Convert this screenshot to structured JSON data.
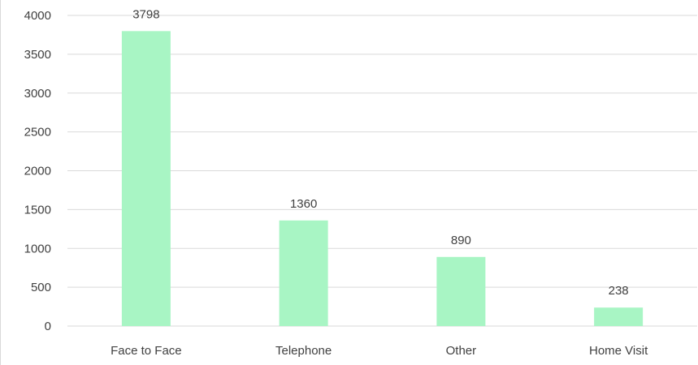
{
  "chart_data": {
    "type": "bar",
    "categories": [
      "Face to Face",
      "Telephone",
      "Other",
      "Home Visit"
    ],
    "values": [
      3798,
      1360,
      890,
      238
    ],
    "data_labels": [
      "3798",
      "1360",
      "890",
      "238"
    ],
    "y_ticks": [
      "0",
      "500",
      "1000",
      "1500",
      "2000",
      "2500",
      "3000",
      "3500",
      "4000"
    ],
    "ylim": [
      0,
      4000
    ],
    "grid": true,
    "legend": "none",
    "bar_color": "#a8f5c4",
    "title": "",
    "xlabel": "",
    "ylabel": ""
  }
}
